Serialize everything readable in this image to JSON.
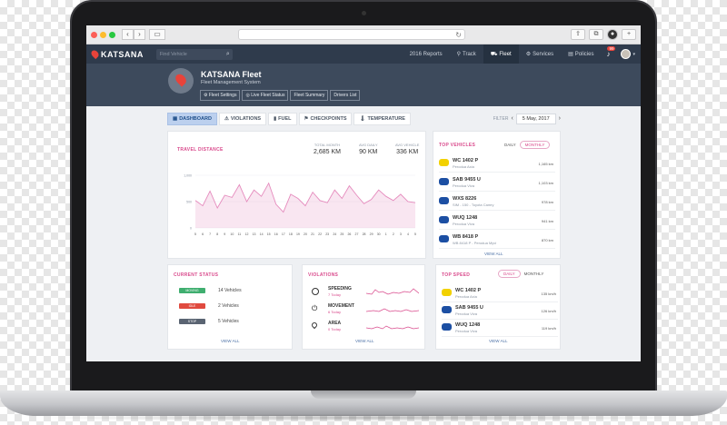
{
  "browser": {
    "search_placeholder": "Find Vehicle"
  },
  "nav": {
    "logo": "KATSANA",
    "items": [
      {
        "label": "2016 Reports",
        "icon": ""
      },
      {
        "label": "Track",
        "icon": "pin-icon"
      },
      {
        "label": "Fleet",
        "icon": "car-icon",
        "active": true
      },
      {
        "label": "Services",
        "icon": "wrench-icon"
      },
      {
        "label": "Policies",
        "icon": "document-icon"
      }
    ],
    "notification_count": "99"
  },
  "fleet": {
    "title": "KATSANA Fleet",
    "subtitle": "Fleet Management System",
    "tabs": [
      "Fleet Settings",
      "Live Fleet Status",
      "Fleet Summary",
      "Drivers List"
    ]
  },
  "filter": {
    "tabs": [
      "DASHBOARD",
      "VIOLATIONS",
      "FUEL",
      "CHECKPOINTS",
      "TEMPERATURE"
    ],
    "label": "FILTER",
    "date": "5 May, 2017"
  },
  "travel": {
    "title": "TRAVEL DISTANCE",
    "stats": [
      {
        "label": "TOTAL MONTH",
        "value": "2,685 KM"
      },
      {
        "label": "AVG DAILY",
        "value": "90 KM"
      },
      {
        "label": "AVG VEHICLE",
        "value": "336 KM"
      }
    ]
  },
  "chart_data": {
    "type": "area",
    "x": [
      "5",
      "6",
      "7",
      "8",
      "9",
      "10",
      "11",
      "12",
      "13",
      "14",
      "15",
      "16",
      "17",
      "18",
      "19",
      "20",
      "21",
      "22",
      "23",
      "24",
      "25",
      "26",
      "27",
      "28",
      "29",
      "30",
      "1",
      "2",
      "3",
      "4",
      "5"
    ],
    "series": [
      {
        "values": [
          520,
          420,
          700,
          380,
          620,
          580,
          820,
          500,
          720,
          600,
          850,
          450,
          300,
          640,
          560,
          420,
          680,
          520,
          480,
          720,
          560,
          800,
          620,
          460,
          540,
          720,
          600,
          520,
          640,
          500,
          480
        ]
      }
    ],
    "yticks": [
      "0",
      "500",
      "1,000"
    ],
    "ylim": [
      0,
      1000
    ],
    "color": "#e58bbd"
  },
  "top_vehicles": {
    "title": "TOP VEHICLES",
    "toggle": [
      "DAILY",
      "MONTHLY"
    ],
    "rows": [
      {
        "plate": "WC 1402 P",
        "model": "Perodua Axia",
        "dist": "1,165 km",
        "color": "#f2d100"
      },
      {
        "plate": "SAB 9455 U",
        "model": "Perodua Viva",
        "dist": "1,103 km",
        "color": "#1c4fa3"
      },
      {
        "plate": "WXS 8226",
        "model": "SIM - 150 - Toyota Camry",
        "dist": "978 km",
        "color": "#1c4fa3"
      },
      {
        "plate": "WUQ 1248",
        "model": "Perodua Viva",
        "dist": "941 km",
        "color": "#1c4fa3"
      },
      {
        "plate": "WB 8418 P",
        "model": "WB 8418 P - Perodua Myvi",
        "dist": "870 km",
        "color": "#1c4fa3"
      }
    ],
    "view_all": "VIEW ALL"
  },
  "current_status": {
    "title": "CURRENT STATUS",
    "rows": [
      {
        "label": "MOVING",
        "text": "14 Vehicles",
        "color": "#3fae6f"
      },
      {
        "label": "IDLE",
        "text": "2 Vehicles",
        "color": "#e04a3f"
      },
      {
        "label": "STOP",
        "text": "5 Vehicles",
        "color": "#5a6472"
      }
    ],
    "view_all": "VIEW ALL"
  },
  "violations": {
    "title": "VIOLATIONS",
    "rows": [
      {
        "name": "SPEEDING",
        "sub": "7 Today",
        "icon": "speedometer-icon"
      },
      {
        "name": "MOVEMENT",
        "sub": "6 Today",
        "icon": "power-icon"
      },
      {
        "name": "AREA",
        "sub": "0 Today",
        "icon": "location-icon"
      }
    ],
    "view_all": "VIEW ALL"
  },
  "top_speed": {
    "title": "TOP SPEED",
    "toggle": [
      "DAILY",
      "MONTHLY"
    ],
    "rows": [
      {
        "plate": "WC 1402 P",
        "model": "Perodua Axia",
        "dist": "135 km/h",
        "color": "#f2d100"
      },
      {
        "plate": "SAB 9455 U",
        "model": "Perodua Viva",
        "dist": "126 km/h",
        "color": "#1c4fa3"
      },
      {
        "plate": "WUQ 1248",
        "model": "Perodua Viva",
        "dist": "119 km/h",
        "color": "#1c4fa3"
      }
    ],
    "view_all": "VIEW ALL"
  }
}
